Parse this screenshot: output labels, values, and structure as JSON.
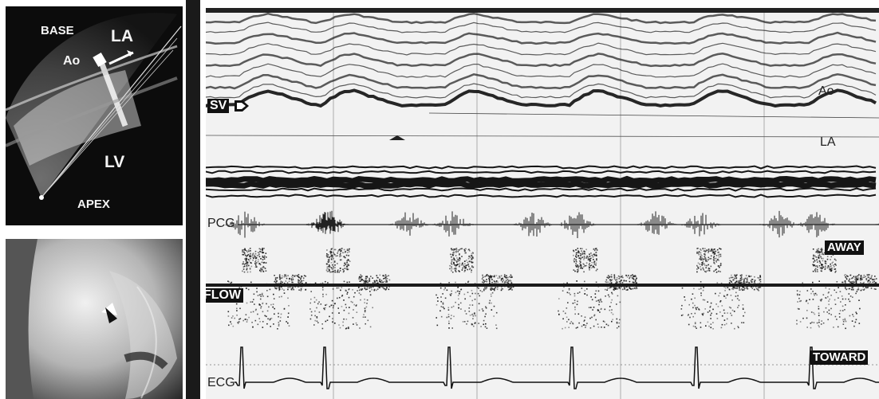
{
  "echo_panel": {
    "base_label": "BASE",
    "la_label": "LA",
    "ao_label": "Ao",
    "lv_label": "LV",
    "apex_label": "APEX"
  },
  "mmode_panel": {
    "sv_label": "SV",
    "ao_label": "Ao",
    "la_label": "LA",
    "pcg_label": "PCG",
    "away_label": "AWAY",
    "flow_label": "FLOW",
    "toward_label": "TOWARD",
    "ecg_label": "ECG"
  },
  "colors": {
    "background": "#ffffff",
    "echo_bg": "#0c0c0c",
    "trace": "#1a1a1a",
    "label_box": "#111111"
  }
}
